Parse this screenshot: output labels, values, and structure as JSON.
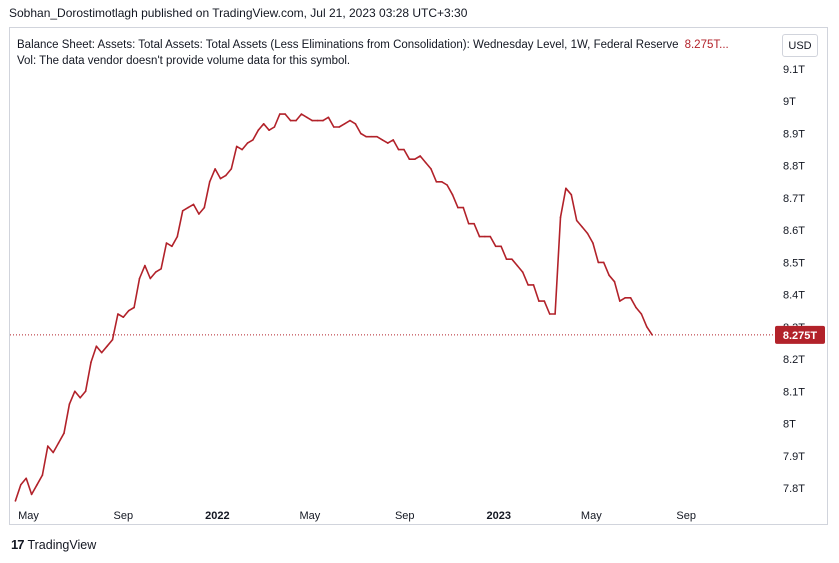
{
  "header": {
    "publisher_text": "Sobhan_Dorostimotlagh published on TradingView.com, Jul 21, 2023 03:28 UTC+3:30"
  },
  "legend": {
    "series_title": "Balance Sheet: Assets: Total Assets: Total Assets (Less Eliminations from Consolidation): Wednesday Level, 1W, Federal Reserve",
    "series_value": "8.275T...",
    "volume_note": "Vol: The data vendor doesn't provide volume data for this symbol."
  },
  "currency_button": {
    "label": "USD"
  },
  "brand": {
    "logo": "17",
    "name": "TradingView"
  },
  "colors": {
    "series": "#b2222a",
    "text": "#131722",
    "grid_border": "#d1d4dc"
  },
  "chart_data": {
    "type": "line",
    "title": "",
    "xlabel": "",
    "ylabel": "",
    "grid": false,
    "y_unit": "T",
    "ylim": [
      7.76,
      9.16
    ],
    "y_ticks": [
      {
        "value": 7.8,
        "label": "7.8T"
      },
      {
        "value": 7.9,
        "label": "7.9T"
      },
      {
        "value": 8.0,
        "label": "8T"
      },
      {
        "value": 8.1,
        "label": "8.1T"
      },
      {
        "value": 8.2,
        "label": "8.2T"
      },
      {
        "value": 8.3,
        "label": "8.3T"
      },
      {
        "value": 8.4,
        "label": "8.4T"
      },
      {
        "value": 8.5,
        "label": "8.5T"
      },
      {
        "value": 8.6,
        "label": "8.6T"
      },
      {
        "value": 8.7,
        "label": "8.7T"
      },
      {
        "value": 8.8,
        "label": "8.8T"
      },
      {
        "value": 8.9,
        "label": "8.9T"
      },
      {
        "value": 9.0,
        "label": "9T"
      },
      {
        "value": 9.1,
        "label": "9.1T"
      }
    ],
    "x_ticks": [
      {
        "date": "2021-05-01",
        "label": "May",
        "bold": false
      },
      {
        "date": "2021-09-01",
        "label": "Sep",
        "bold": false
      },
      {
        "date": "2022-01-01",
        "label": "2022",
        "bold": true
      },
      {
        "date": "2022-05-01",
        "label": "May",
        "bold": false
      },
      {
        "date": "2022-09-01",
        "label": "Sep",
        "bold": false
      },
      {
        "date": "2023-01-01",
        "label": "2023",
        "bold": true
      },
      {
        "date": "2023-05-01",
        "label": "May",
        "bold": false
      },
      {
        "date": "2023-09-01",
        "label": "Sep",
        "bold": false
      }
    ],
    "xlim": [
      "2021-04-07",
      "2023-11-28"
    ],
    "last_value": 8.275,
    "last_value_label": "8.275T",
    "series": [
      {
        "name": "Balance Sheet: Assets: Total Assets: Total Assets (Less Eliminations from Consolidation): Wednesday Level, 1W, Federal Reserve",
        "color": "#b2222a",
        "points": [
          [
            "2021-04-14",
            7.76
          ],
          [
            "2021-04-21",
            7.81
          ],
          [
            "2021-04-28",
            7.83
          ],
          [
            "2021-05-05",
            7.78
          ],
          [
            "2021-05-12",
            7.81
          ],
          [
            "2021-05-19",
            7.84
          ],
          [
            "2021-05-26",
            7.93
          ],
          [
            "2021-06-02",
            7.91
          ],
          [
            "2021-06-09",
            7.94
          ],
          [
            "2021-06-16",
            7.97
          ],
          [
            "2021-06-23",
            8.06
          ],
          [
            "2021-06-30",
            8.1
          ],
          [
            "2021-07-07",
            8.08
          ],
          [
            "2021-07-14",
            8.1
          ],
          [
            "2021-07-21",
            8.19
          ],
          [
            "2021-07-28",
            8.24
          ],
          [
            "2021-08-04",
            8.22
          ],
          [
            "2021-08-11",
            8.24
          ],
          [
            "2021-08-18",
            8.26
          ],
          [
            "2021-08-25",
            8.34
          ],
          [
            "2021-09-01",
            8.33
          ],
          [
            "2021-09-08",
            8.35
          ],
          [
            "2021-09-15",
            8.36
          ],
          [
            "2021-09-22",
            8.45
          ],
          [
            "2021-09-29",
            8.49
          ],
          [
            "2021-10-06",
            8.45
          ],
          [
            "2021-10-13",
            8.47
          ],
          [
            "2021-10-20",
            8.48
          ],
          [
            "2021-10-27",
            8.56
          ],
          [
            "2021-11-03",
            8.55
          ],
          [
            "2021-11-10",
            8.58
          ],
          [
            "2021-11-17",
            8.66
          ],
          [
            "2021-11-24",
            8.67
          ],
          [
            "2021-12-01",
            8.68
          ],
          [
            "2021-12-08",
            8.65
          ],
          [
            "2021-12-15",
            8.67
          ],
          [
            "2021-12-22",
            8.75
          ],
          [
            "2021-12-29",
            8.79
          ],
          [
            "2022-01-05",
            8.76
          ],
          [
            "2022-01-12",
            8.77
          ],
          [
            "2022-01-19",
            8.79
          ],
          [
            "2022-01-26",
            8.86
          ],
          [
            "2022-02-02",
            8.85
          ],
          [
            "2022-02-09",
            8.87
          ],
          [
            "2022-02-16",
            8.88
          ],
          [
            "2022-02-23",
            8.91
          ],
          [
            "2022-03-02",
            8.93
          ],
          [
            "2022-03-09",
            8.91
          ],
          [
            "2022-03-16",
            8.92
          ],
          [
            "2022-03-23",
            8.96
          ],
          [
            "2022-03-30",
            8.96
          ],
          [
            "2022-04-06",
            8.94
          ],
          [
            "2022-04-13",
            8.94
          ],
          [
            "2022-04-20",
            8.96
          ],
          [
            "2022-04-27",
            8.95
          ],
          [
            "2022-05-04",
            8.94
          ],
          [
            "2022-05-11",
            8.94
          ],
          [
            "2022-05-18",
            8.94
          ],
          [
            "2022-05-25",
            8.95
          ],
          [
            "2022-06-01",
            8.92
          ],
          [
            "2022-06-08",
            8.92
          ],
          [
            "2022-06-15",
            8.93
          ],
          [
            "2022-06-22",
            8.94
          ],
          [
            "2022-06-29",
            8.93
          ],
          [
            "2022-07-06",
            8.9
          ],
          [
            "2022-07-13",
            8.89
          ],
          [
            "2022-07-20",
            8.89
          ],
          [
            "2022-07-27",
            8.89
          ],
          [
            "2022-08-03",
            8.88
          ],
          [
            "2022-08-10",
            8.87
          ],
          [
            "2022-08-17",
            8.88
          ],
          [
            "2022-08-24",
            8.85
          ],
          [
            "2022-08-31",
            8.85
          ],
          [
            "2022-09-07",
            8.82
          ],
          [
            "2022-09-14",
            8.82
          ],
          [
            "2022-09-21",
            8.83
          ],
          [
            "2022-09-28",
            8.81
          ],
          [
            "2022-10-05",
            8.79
          ],
          [
            "2022-10-12",
            8.75
          ],
          [
            "2022-10-19",
            8.75
          ],
          [
            "2022-10-26",
            8.74
          ],
          [
            "2022-11-02",
            8.71
          ],
          [
            "2022-11-09",
            8.67
          ],
          [
            "2022-11-16",
            8.67
          ],
          [
            "2022-11-23",
            8.62
          ],
          [
            "2022-11-30",
            8.62
          ],
          [
            "2022-12-07",
            8.58
          ],
          [
            "2022-12-14",
            8.58
          ],
          [
            "2022-12-21",
            8.58
          ],
          [
            "2022-12-28",
            8.55
          ],
          [
            "2023-01-04",
            8.55
          ],
          [
            "2023-01-11",
            8.51
          ],
          [
            "2023-01-18",
            8.51
          ],
          [
            "2023-01-25",
            8.49
          ],
          [
            "2023-02-01",
            8.47
          ],
          [
            "2023-02-08",
            8.43
          ],
          [
            "2023-02-15",
            8.43
          ],
          [
            "2023-02-22",
            8.38
          ],
          [
            "2023-03-01",
            8.38
          ],
          [
            "2023-03-08",
            8.34
          ],
          [
            "2023-03-15",
            8.34
          ],
          [
            "2023-03-22",
            8.64
          ],
          [
            "2023-03-29",
            8.73
          ],
          [
            "2023-04-05",
            8.71
          ],
          [
            "2023-04-12",
            8.63
          ],
          [
            "2023-04-19",
            8.61
          ],
          [
            "2023-04-26",
            8.59
          ],
          [
            "2023-05-03",
            8.56
          ],
          [
            "2023-05-10",
            8.5
          ],
          [
            "2023-05-17",
            8.5
          ],
          [
            "2023-05-24",
            8.46
          ],
          [
            "2023-05-31",
            8.44
          ],
          [
            "2023-06-07",
            8.38
          ],
          [
            "2023-06-14",
            8.39
          ],
          [
            "2023-06-21",
            8.39
          ],
          [
            "2023-06-28",
            8.36
          ],
          [
            "2023-07-05",
            8.34
          ],
          [
            "2023-07-12",
            8.3
          ],
          [
            "2023-07-19",
            8.275
          ]
        ]
      }
    ]
  }
}
